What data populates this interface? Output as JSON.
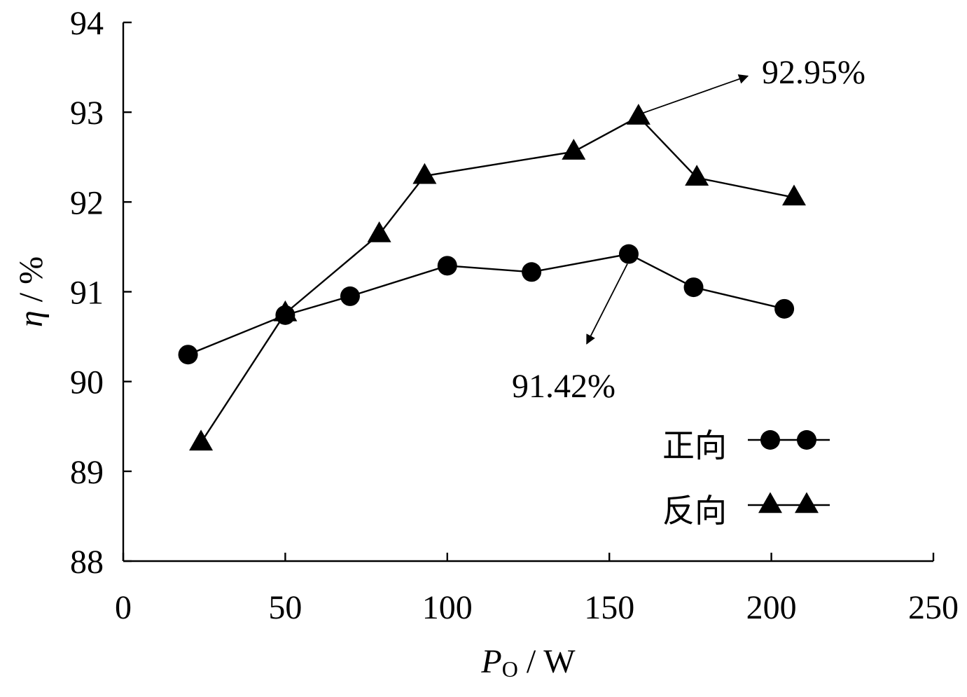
{
  "chart_data": {
    "type": "line",
    "xlabel": {
      "main": "P",
      "sub": "O",
      "unit": " / W"
    },
    "ylabel": {
      "main": "η",
      "unit": " / %"
    },
    "xlim": [
      0,
      250
    ],
    "ylim": [
      88,
      94
    ],
    "xticks": [
      0,
      50,
      100,
      150,
      200,
      250
    ],
    "yticks": [
      88,
      89,
      90,
      91,
      92,
      93,
      94
    ],
    "grid": false,
    "legend_position": "bottom-right",
    "series": [
      {
        "name": "正向",
        "marker": "circle",
        "x": [
          20,
          50,
          70,
          100,
          126,
          156,
          176,
          204
        ],
        "y": [
          90.3,
          90.74,
          90.95,
          91.29,
          91.22,
          91.42,
          91.05,
          90.81
        ]
      },
      {
        "name": "反向",
        "marker": "triangle",
        "x": [
          24,
          50,
          79,
          93,
          139,
          159,
          177,
          207
        ],
        "y": [
          89.32,
          90.76,
          91.64,
          92.29,
          92.56,
          92.95,
          92.27,
          92.05
        ]
      }
    ],
    "annotations": [
      {
        "text": "92.95%",
        "series": 1,
        "point": 5
      },
      {
        "text": "91.42%",
        "series": 0,
        "point": 5
      }
    ]
  }
}
